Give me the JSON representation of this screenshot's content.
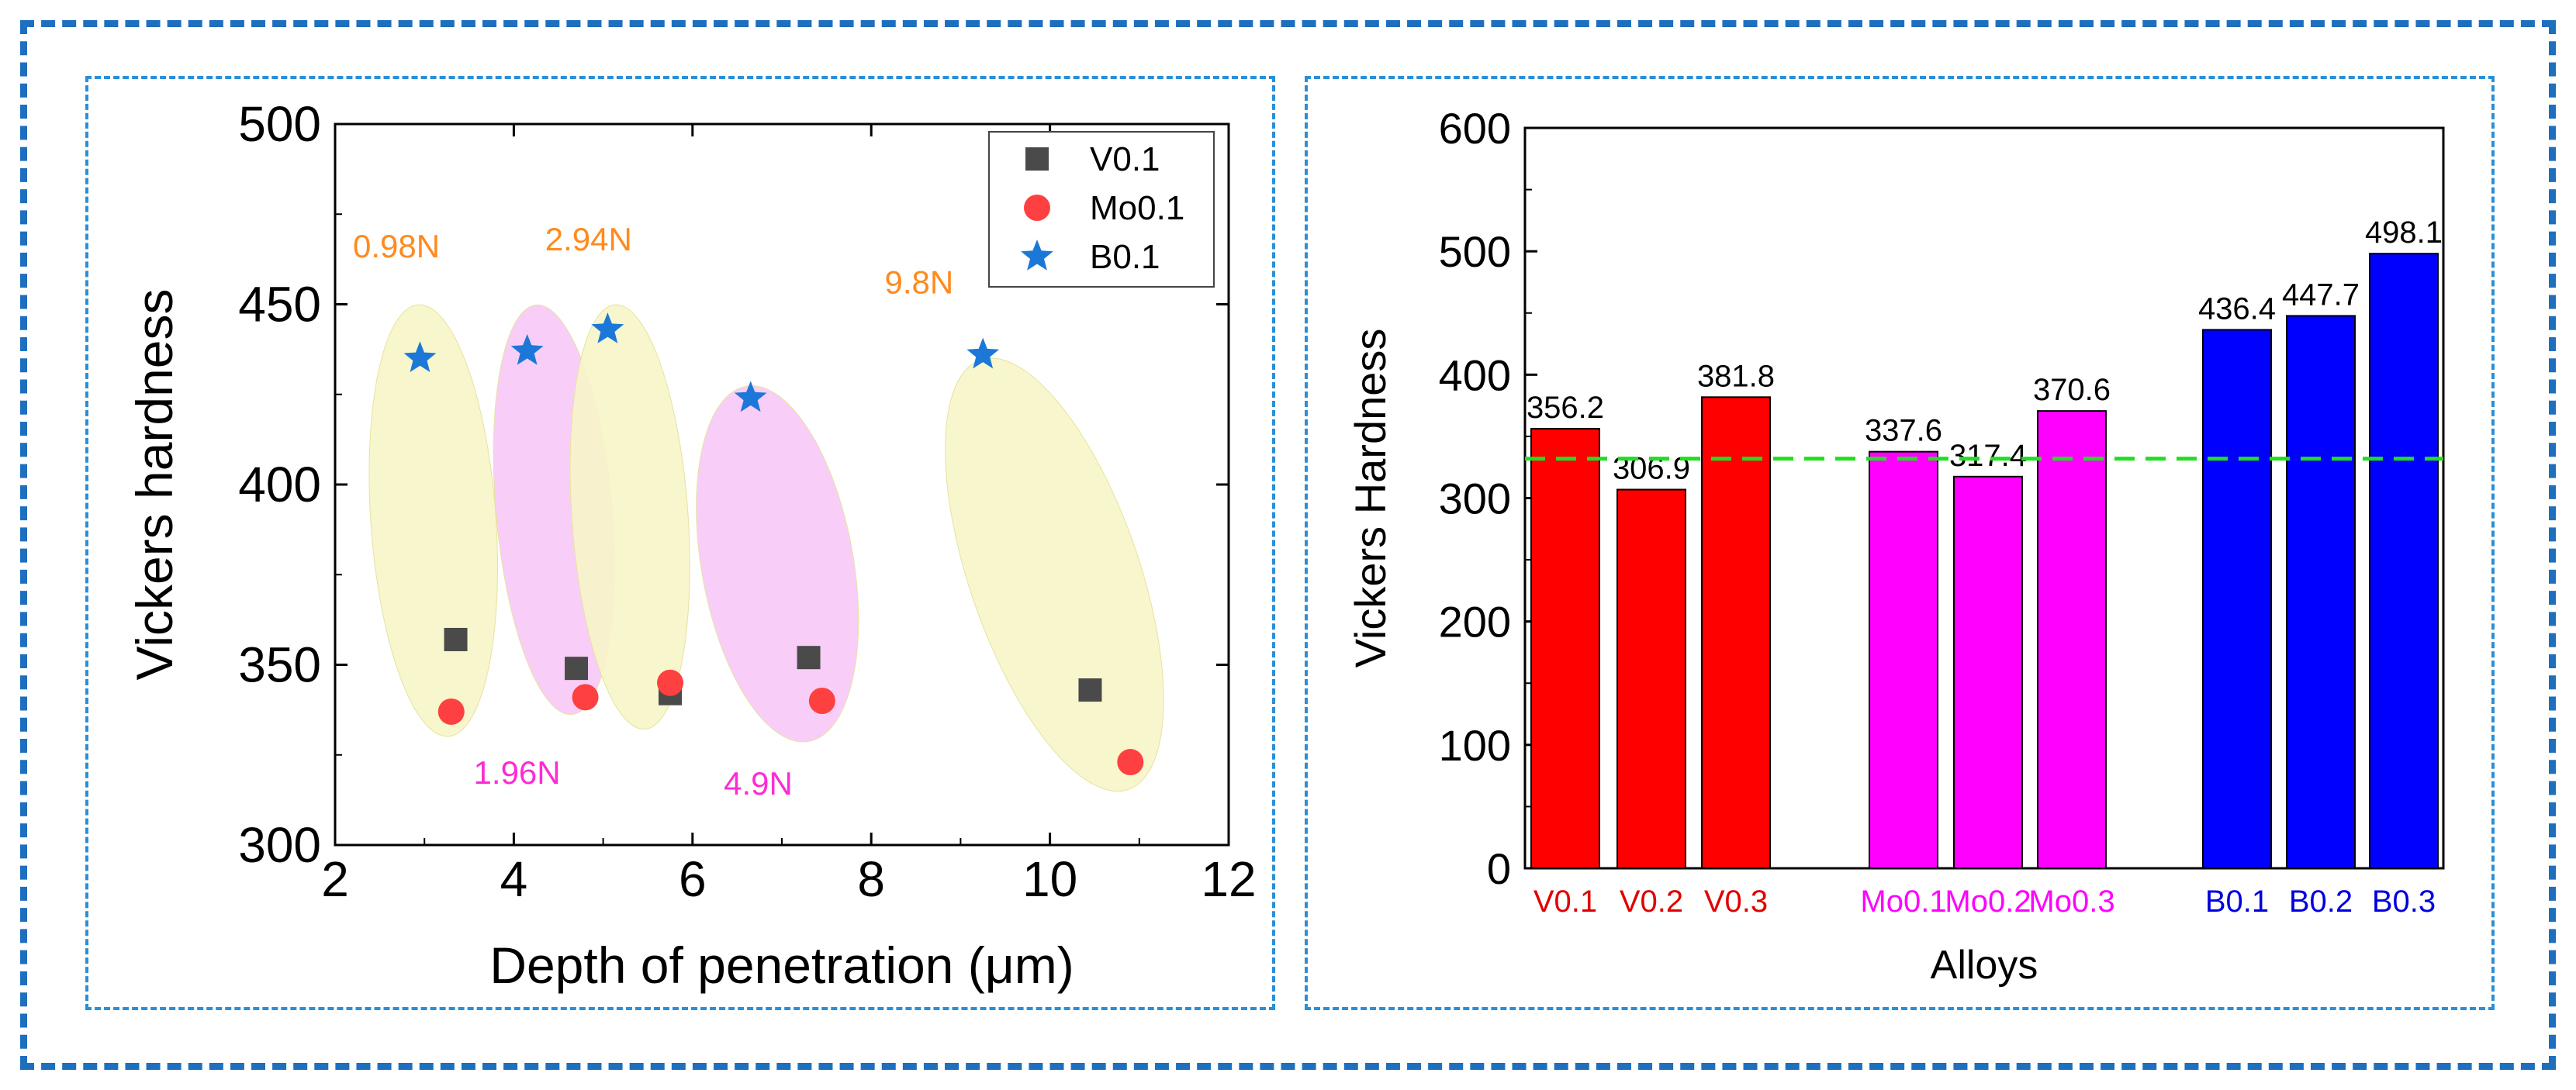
{
  "chart_data": [
    {
      "type": "scatter",
      "xlabel": "Depth of penetration (μm)",
      "ylabel": "Vickers hardness",
      "xlim": [
        2,
        12
      ],
      "ylim": [
        300,
        500
      ],
      "xticks": [
        "2",
        "4",
        "6",
        "8",
        "10",
        "12"
      ],
      "yticks": [
        "300",
        "350",
        "400",
        "450",
        "500"
      ],
      "legend_position": "top-right",
      "series": [
        {
          "name": "V0.1",
          "marker": "square",
          "color": "#4a4a4a",
          "points": [
            [
              3.35,
              357
            ],
            [
              4.7,
              349
            ],
            [
              5.75,
              342
            ],
            [
              7.3,
              352
            ],
            [
              10.45,
              343
            ]
          ]
        },
        {
          "name": "Mo0.1",
          "marker": "circle",
          "color": "#ff4040",
          "points": [
            [
              3.3,
              337
            ],
            [
              4.8,
              341
            ],
            [
              5.75,
              345
            ],
            [
              7.45,
              340
            ],
            [
              10.9,
              323
            ]
          ]
        },
        {
          "name": "B0.1",
          "marker": "star",
          "color": "#1c78d8",
          "points": [
            [
              2.95,
              435
            ],
            [
              4.15,
              437
            ],
            [
              5.05,
              443
            ],
            [
              6.65,
              424
            ],
            [
              9.25,
              436
            ]
          ]
        }
      ],
      "groups": [
        {
          "label": "0.98N",
          "color": "#ff8a1e",
          "fill": "#f7f5c8"
        },
        {
          "label": "1.96N",
          "color": "#ff2ad4",
          "fill": "#f7c9f7"
        },
        {
          "label": "2.94N",
          "color": "#ff8a1e",
          "fill": "#f7f5c8"
        },
        {
          "label": "4.9N",
          "color": "#ff2ad4",
          "fill": "#f7c9f7"
        },
        {
          "label": "9.8N",
          "color": "#ff8a1e",
          "fill": "#f7f5c8"
        }
      ]
    },
    {
      "type": "bar",
      "xlabel": "Alloys",
      "ylabel": "Vickers Hardness",
      "ylim": [
        0,
        600
      ],
      "yticks": [
        "0",
        "100",
        "200",
        "300",
        "400",
        "500",
        "600"
      ],
      "reference_line": {
        "value": 332,
        "color": "#22dd22",
        "style": "dashed"
      },
      "categories": [
        "V0.1",
        "V0.2",
        "V0.3",
        "Mo0.1",
        "Mo0.2",
        "Mo0.3",
        "B0.1",
        "B0.2",
        "B0.3"
      ],
      "values": [
        356.2,
        306.9,
        381.8,
        337.6,
        317.4,
        370.6,
        436.4,
        447.7,
        498.1
      ],
      "value_labels": [
        "356.2",
        "306.9",
        "381.8",
        "337.6",
        "317.4",
        "370.6",
        "436.4",
        "447.7",
        "498.1"
      ],
      "bar_colors": [
        "#ff0000",
        "#ff0000",
        "#ff0000",
        "#ff00ff",
        "#ff00ff",
        "#ff00ff",
        "#0000ff",
        "#0000ff",
        "#0000ff"
      ],
      "label_colors": [
        "#e00000",
        "#e00000",
        "#e00000",
        "#ff00ff",
        "#ff00ff",
        "#ff00ff",
        "#0000e0",
        "#0000e0",
        "#0000e0"
      ]
    }
  ]
}
